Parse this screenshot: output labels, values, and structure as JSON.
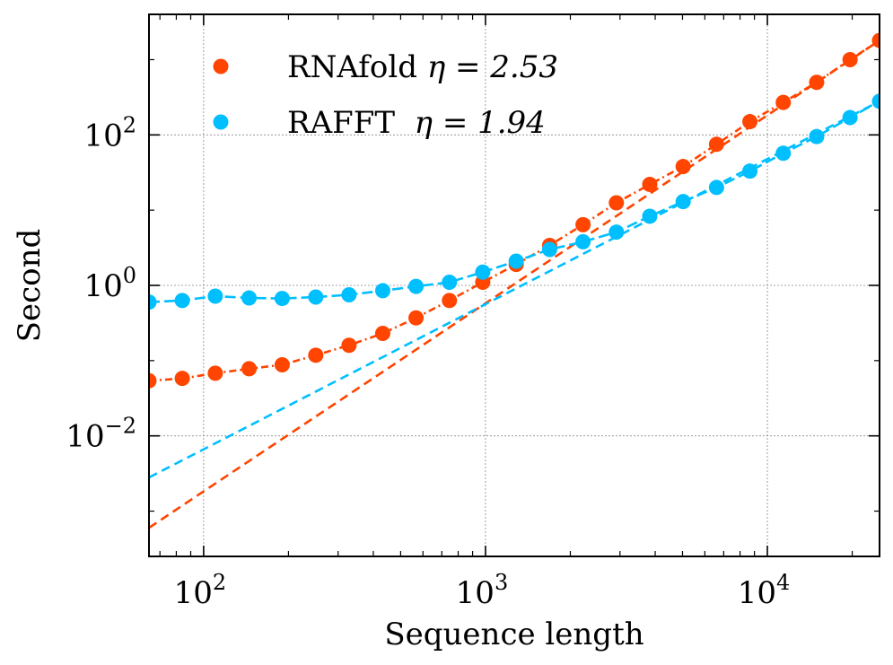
{
  "chart_data": {
    "type": "scatter",
    "xlabel": "Sequence length",
    "ylabel": "Second",
    "xscale": "log",
    "yscale": "log",
    "xlim": [
      64,
      25000
    ],
    "ylim": [
      0.00025,
      4000
    ],
    "grid": true,
    "legend_position": "top-left",
    "x_ticks": [
      {
        "value": 100,
        "base": "10",
        "exp": "2"
      },
      {
        "value": 1000,
        "base": "10",
        "exp": "3"
      },
      {
        "value": 10000,
        "base": "10",
        "exp": "4"
      }
    ],
    "y_ticks": [
      {
        "value": 0.01,
        "base": "10",
        "exp": "−2"
      },
      {
        "value": 1,
        "base": "10",
        "exp": "0"
      },
      {
        "value": 100,
        "base": "10",
        "exp": "2"
      }
    ],
    "series": [
      {
        "name": "RNAfold",
        "label_prefix": "RNAfold ",
        "eta_text": "η = 2.53",
        "color": "#ff4500",
        "fit_exponent": 2.53,
        "x": [
          64,
          84,
          110,
          145,
          190,
          250,
          328,
          432,
          567,
          745,
          978,
          1285,
          1689,
          2218,
          2913,
          3826,
          5026,
          6601,
          8670,
          11388,
          14958,
          19647,
          25000
        ],
        "y": [
          0.054,
          0.058,
          0.068,
          0.078,
          0.088,
          0.118,
          0.16,
          0.23,
          0.37,
          0.63,
          1.1,
          1.9,
          3.4,
          6.4,
          12.5,
          22,
          38,
          75,
          150,
          270,
          500,
          1000,
          1800
        ],
        "fit_points": [
          [
            64,
            0.0006
          ],
          [
            25000,
            1800
          ]
        ]
      },
      {
        "name": "RAFFT",
        "label_prefix": "RAFFT  ",
        "eta_text": "η = 1.94",
        "color": "#00bfff",
        "fit_exponent": 1.94,
        "x": [
          64,
          84,
          110,
          145,
          190,
          250,
          328,
          432,
          567,
          745,
          978,
          1285,
          1689,
          2218,
          2913,
          3826,
          5026,
          6601,
          8670,
          11388,
          14958,
          19647,
          25000
        ],
        "y": [
          0.6,
          0.63,
          0.72,
          0.68,
          0.67,
          0.7,
          0.75,
          0.85,
          0.97,
          1.1,
          1.5,
          2.1,
          3.0,
          3.8,
          5.1,
          8.3,
          13,
          20,
          33,
          57,
          95,
          170,
          280
        ],
        "fit_points": [
          [
            64,
            0.0028
          ],
          [
            25000,
            280
          ]
        ]
      }
    ]
  }
}
